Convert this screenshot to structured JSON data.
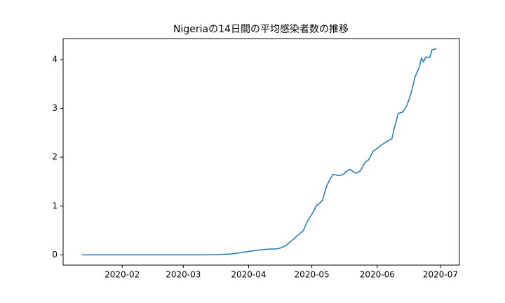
{
  "chart_data": {
    "type": "line",
    "title": "Nigeriaの14日間の平均感染者数の推移",
    "x": [
      "2020-01-13",
      "2020-02-15",
      "2020-03-10",
      "2020-03-17",
      "2020-03-24",
      "2020-03-29",
      "2020-04-01",
      "2020-04-06",
      "2020-04-11",
      "2020-04-14",
      "2020-04-16",
      "2020-04-19",
      "2020-04-23",
      "2020-04-27",
      "2020-04-29",
      "2020-05-02",
      "2020-05-03",
      "2020-05-05",
      "2020-05-06",
      "2020-05-08",
      "2020-05-09",
      "2020-05-11",
      "2020-05-14",
      "2020-05-16",
      "2020-05-17",
      "2020-05-19",
      "2020-05-22",
      "2020-05-24",
      "2020-05-26",
      "2020-05-28",
      "2020-05-30",
      "2020-06-01",
      "2020-06-03",
      "2020-06-06",
      "2020-06-08",
      "2020-06-09",
      "2020-06-11",
      "2020-06-13",
      "2020-06-15",
      "2020-06-17",
      "2020-06-19",
      "2020-06-21",
      "2020-06-22",
      "2020-06-23",
      "2020-06-24",
      "2020-06-26",
      "2020-06-27",
      "2020-06-29"
    ],
    "series": [
      {
        "name": "Nigeria",
        "color": "#1f77b4",
        "values": [
          0,
          0,
          0,
          0.005,
          0.02,
          0.05,
          0.07,
          0.1,
          0.12,
          0.12,
          0.14,
          0.2,
          0.35,
          0.5,
          0.7,
          0.9,
          1.0,
          1.07,
          1.12,
          1.4,
          1.5,
          1.65,
          1.62,
          1.65,
          1.7,
          1.75,
          1.67,
          1.72,
          1.88,
          1.95,
          2.12,
          2.18,
          2.25,
          2.33,
          2.38,
          2.58,
          2.9,
          2.92,
          3.05,
          3.3,
          3.65,
          3.85,
          4.03,
          3.95,
          4.05,
          4.05,
          4.2,
          4.22
        ]
      }
    ],
    "xlim": [
      "2020-01-04",
      "2020-07-10"
    ],
    "xticks": [
      {
        "value": "2020-02-01",
        "label": "2020-02"
      },
      {
        "value": "2020-03-01",
        "label": "2020-03"
      },
      {
        "value": "2020-04-01",
        "label": "2020-04"
      },
      {
        "value": "2020-05-01",
        "label": "2020-05"
      },
      {
        "value": "2020-06-01",
        "label": "2020-06"
      },
      {
        "value": "2020-07-01",
        "label": "2020-07"
      }
    ],
    "ylim": [
      -0.21,
      4.43
    ],
    "yticks": [
      0,
      1,
      2,
      3,
      4
    ],
    "grid": false
  }
}
